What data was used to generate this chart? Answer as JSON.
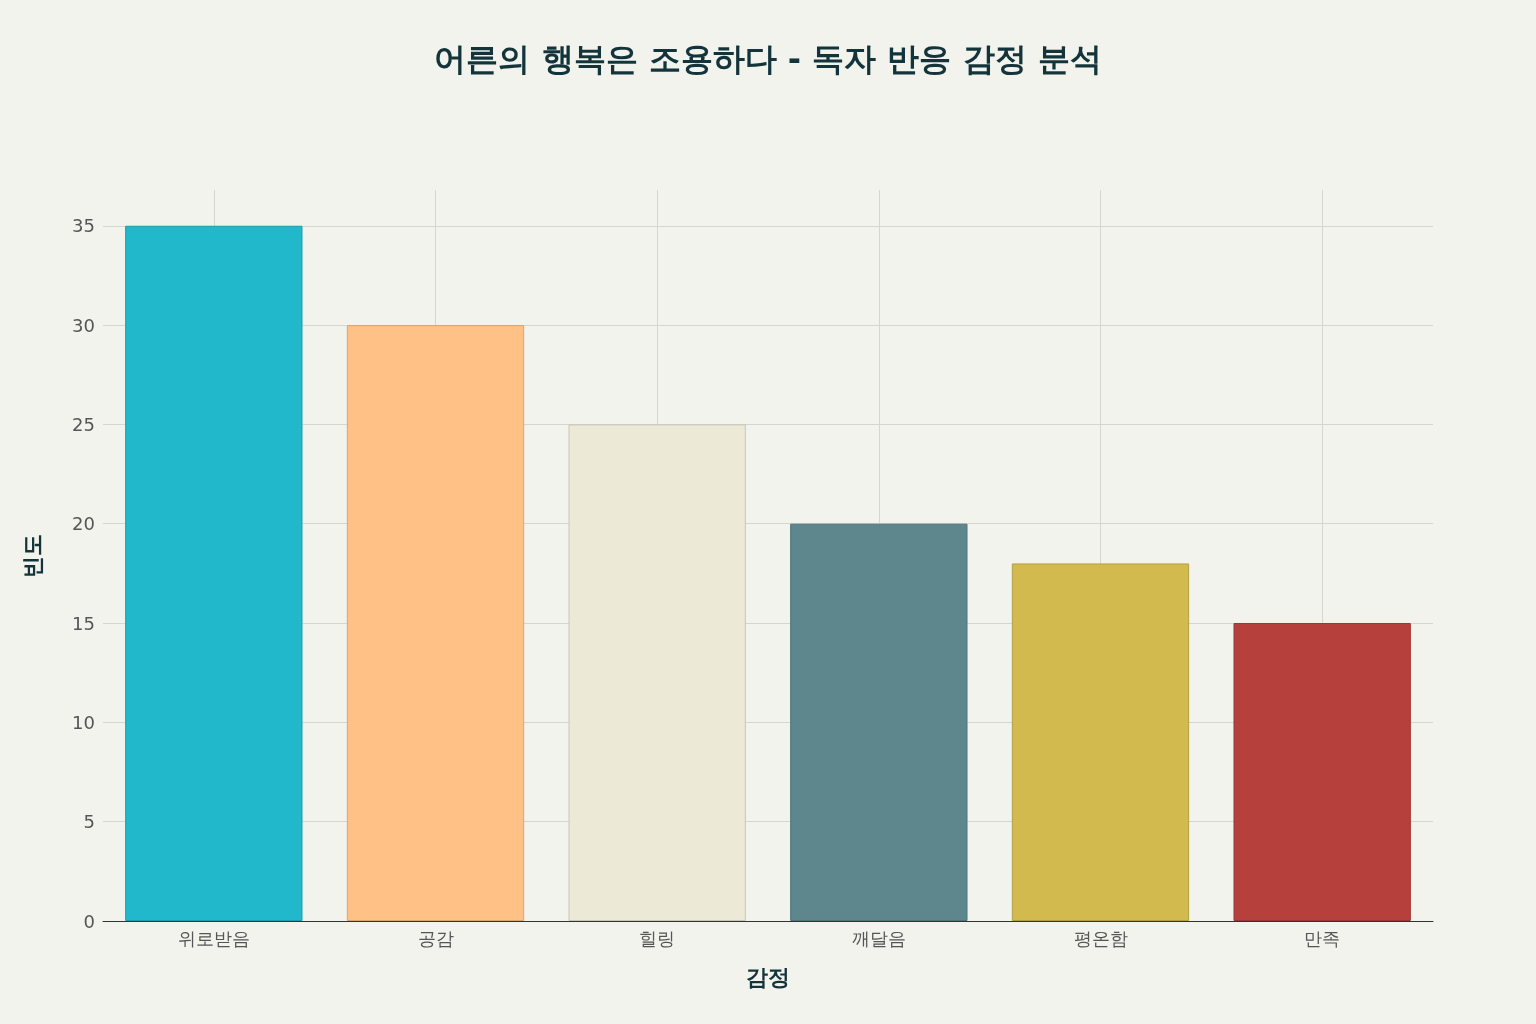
{
  "chart_data": {
    "type": "bar",
    "title": "어른의 행복은 조용하다 - 독자 반응 감정 분석",
    "xlabel": "감정",
    "ylabel": "빈도",
    "categories": [
      "위로받음",
      "공감",
      "힐링",
      "깨달음",
      "평온함",
      "만족"
    ],
    "values": [
      35,
      30,
      25,
      20,
      18,
      15
    ],
    "colors": [
      "#21b8cc",
      "#ffc186",
      "#ece9d6",
      "#5d878d",
      "#d3ba4e",
      "#b5403c"
    ],
    "ylim": [
      0,
      36.8
    ],
    "yticks": [
      0,
      5,
      10,
      15,
      20,
      25,
      30,
      35
    ],
    "grid": true
  }
}
